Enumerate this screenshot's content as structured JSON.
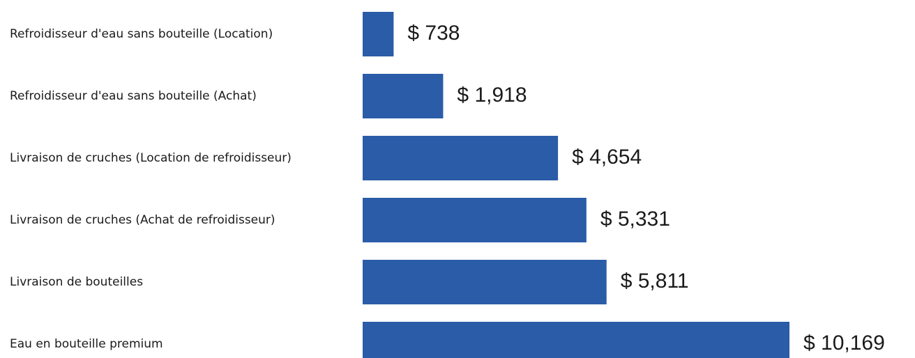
{
  "chart_data": {
    "type": "bar",
    "orientation": "horizontal",
    "categories": [
      "Refroidisseur d'eau sans bouteille (Location)",
      "Refroidisseur d'eau sans bouteille (Achat)",
      "Livraison de cruches (Location de refroidisseur)",
      "Livraison de cruches (Achat de refroidisseur)",
      "Livraison de bouteilles",
      "Eau en bouteille premium"
    ],
    "values": [
      738,
      1918,
      4654,
      5331,
      5811,
      10169
    ],
    "value_labels": [
      "$ 738",
      "$ 1,918",
      "$ 4,654",
      "$ 5,331",
      "$ 5,811",
      "$ 10,169"
    ],
    "color": "#2a5ca8"
  }
}
